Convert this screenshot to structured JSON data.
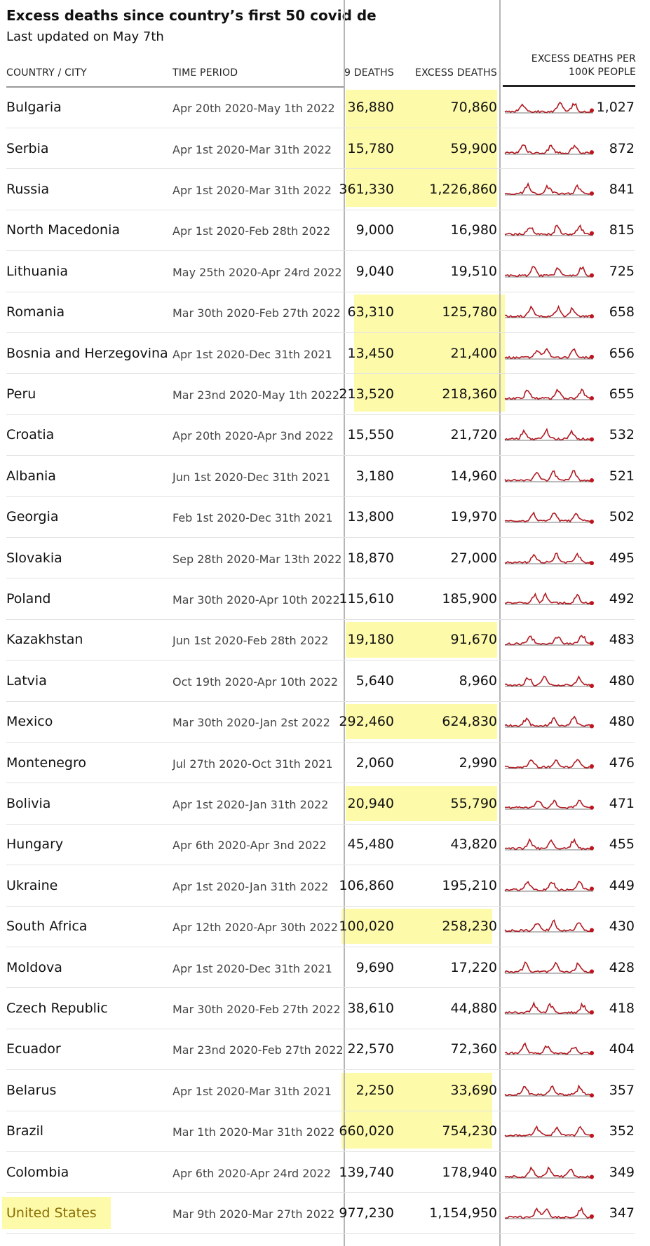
{
  "header": {
    "title": "Excess deaths since country’s first 50 covid de",
    "subtitle": "Last updated on May 7th",
    "columns": [
      "COUNTRY / CITY",
      "TIME PERIOD",
      "9 DEATHS",
      "EXCESS DEATHS",
      "EXCESS DEATHS PER 100K PEOPLE"
    ]
  },
  "table": {
    "rows": [
      [
        "Bulgaria",
        "Apr 20th 2020-May 1th 2022",
        "36,880",
        "70,860",
        "1,027"
      ],
      [
        "Serbia",
        "Apr 1st 2020-Mar 31th 2022",
        "15,780",
        "59,900",
        "872"
      ],
      [
        "Russia",
        "Apr 1st 2020-Mar 31th 2022",
        "361,330",
        "1,226,860",
        "841"
      ],
      [
        "North Macedonia",
        "Apr 1st 2020-Feb 28th 2022",
        "9,000",
        "16,980",
        "815"
      ],
      [
        "Lithuania",
        "May 25th 2020-Apr 24rd 2022",
        "9,040",
        "19,510",
        "725"
      ],
      [
        "Romania",
        "Mar 30th 2020-Feb 27th 2022",
        "63,310",
        "125,780",
        "658"
      ],
      [
        "Bosnia and Herzegovina",
        "Apr 1st 2020-Dec 31th 2021",
        "13,450",
        "21,400",
        "656"
      ],
      [
        "Peru",
        "Mar 23nd 2020-May 1th 2022",
        "213,520",
        "218,360",
        "655"
      ],
      [
        "Croatia",
        "Apr 20th 2020-Apr 3nd 2022",
        "15,550",
        "21,720",
        "532"
      ],
      [
        "Albania",
        "Jun 1st 2020-Dec 31th 2021",
        "3,180",
        "14,960",
        "521"
      ],
      [
        "Georgia",
        "Feb 1st 2020-Dec 31th 2021",
        "13,800",
        "19,970",
        "502"
      ],
      [
        "Slovakia",
        "Sep 28th 2020-Mar 13th 2022",
        "18,870",
        "27,000",
        "495"
      ],
      [
        "Poland",
        "Mar 30th 2020-Apr 10th 2022",
        "115,610",
        "185,900",
        "492"
      ],
      [
        "Kazakhstan",
        "Jun 1st 2020-Feb 28th 2022",
        "19,180",
        "91,670",
        "483"
      ],
      [
        "Latvia",
        "Oct 19th 2020-Apr 10th 2022",
        "5,640",
        "8,960",
        "480"
      ],
      [
        "Mexico",
        "Mar 30th 2020-Jan 2st 2022",
        "292,460",
        "624,830",
        "480"
      ],
      [
        "Montenegro",
        "Jul 27th 2020-Oct 31th 2021",
        "2,060",
        "2,990",
        "476"
      ],
      [
        "Bolivia",
        "Apr 1st 2020-Jan 31th 2022",
        "20,940",
        "55,790",
        "471"
      ],
      [
        "Hungary",
        "Apr 6th 2020-Apr 3nd 2022",
        "45,480",
        "43,820",
        "455"
      ],
      [
        "Ukraine",
        "Apr 1st 2020-Jan 31th 2022",
        "106,860",
        "195,210",
        "449"
      ],
      [
        "South Africa",
        "Apr 12th 2020-Apr 30th 2022",
        "100,020",
        "258,230",
        "430"
      ],
      [
        "Moldova",
        "Apr 1st 2020-Dec 31th 2021",
        "9,690",
        "17,220",
        "428"
      ],
      [
        "Czech Republic",
        "Mar 30th 2020-Feb 27th 2022",
        "38,610",
        "44,880",
        "418"
      ],
      [
        "Ecuador",
        "Mar 23nd 2020-Feb 27th 2022",
        "22,570",
        "72,360",
        "404"
      ],
      [
        "Belarus",
        "Apr 1st 2020-Mar 31th 2021",
        "2,250",
        "33,690",
        "357"
      ],
      [
        "Brazil",
        "Mar 1th 2020-Mar 31th 2022",
        "660,020",
        "754,230",
        "352"
      ],
      [
        "Colombia",
        "Apr 6th 2020-Apr 24rd 2022",
        "139,740",
        "178,940",
        "349"
      ],
      [
        "United States",
        "Mar 9th 2020-Mar 27th 2022",
        "977,230",
        "1,154,950",
        "347"
      ]
    ]
  }
}
